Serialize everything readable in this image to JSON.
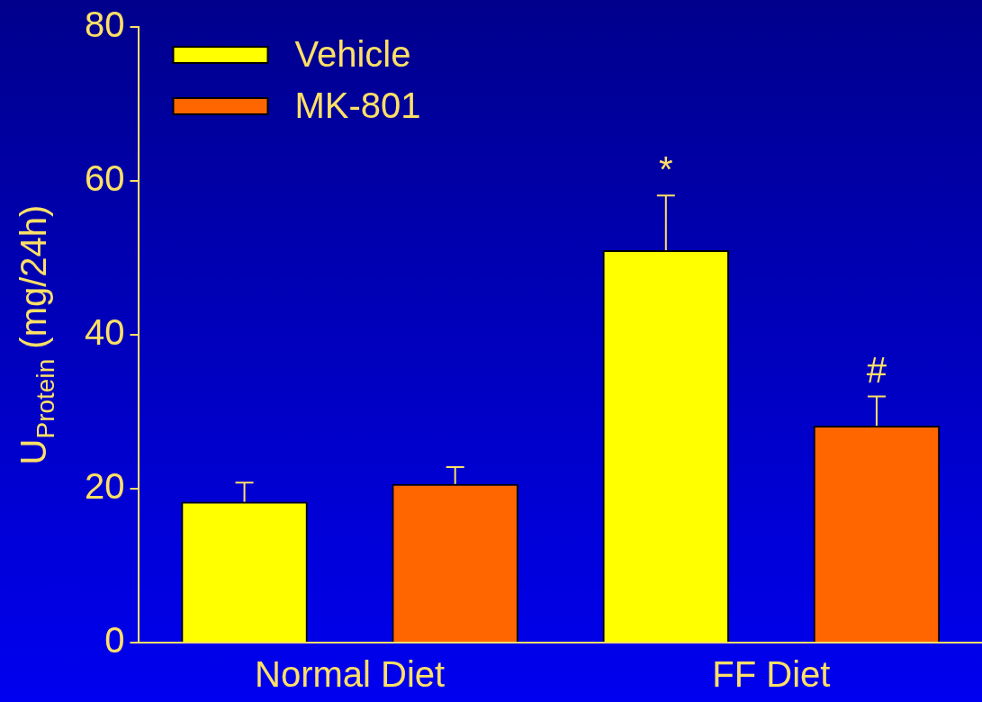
{
  "chart_data": {
    "type": "bar",
    "ylabel": "U$_{Protein}$ (mg/24h)",
    "categories": [
      "Normal Diet",
      "FF Diet"
    ],
    "series": [
      {
        "name": "Vehicle",
        "color": "#ffff00",
        "values": [
          18.3,
          51.0
        ],
        "errors": [
          2.5,
          7.1
        ]
      },
      {
        "name": "MK-801",
        "color": "#ff6600",
        "values": [
          20.6,
          28.2
        ],
        "errors": [
          2.2,
          3.8
        ]
      }
    ],
    "ylim": [
      0,
      80
    ],
    "yticks": [
      0,
      20,
      40,
      60,
      80
    ],
    "grid": false,
    "legend": "top left",
    "annotations": [
      "*",
      "#"
    ]
  }
}
